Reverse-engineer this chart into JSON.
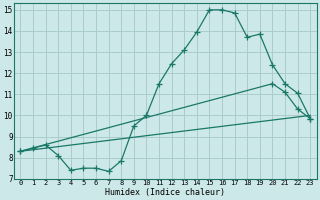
{
  "background_color": "#cce8e8",
  "grid_color": "#aacccc",
  "line_color": "#1a7868",
  "xlim": [
    -0.5,
    23.5
  ],
  "ylim": [
    7,
    15.3
  ],
  "xlabel": "Humidex (Indice chaleur)",
  "xticks": [
    0,
    1,
    2,
    3,
    4,
    5,
    6,
    7,
    8,
    9,
    10,
    11,
    12,
    13,
    14,
    15,
    16,
    17,
    18,
    19,
    20,
    21,
    22,
    23
  ],
  "yticks": [
    7,
    8,
    9,
    10,
    11,
    12,
    13,
    14,
    15
  ],
  "line1_x": [
    0,
    1,
    2,
    3,
    4,
    5,
    6,
    7,
    8,
    9,
    10,
    11,
    12,
    13,
    14,
    15,
    16,
    17,
    18,
    19,
    20,
    21,
    22,
    23
  ],
  "line1_y": [
    8.3,
    8.45,
    8.6,
    8.1,
    7.4,
    7.5,
    7.5,
    7.35,
    7.85,
    9.5,
    10.0,
    11.5,
    12.45,
    13.1,
    13.95,
    15.0,
    15.0,
    14.85,
    13.7,
    13.85,
    12.4,
    11.5,
    11.05,
    9.85
  ],
  "line2_x": [
    0,
    23
  ],
  "line2_y": [
    8.3,
    10.0
  ],
  "line3_x": [
    0,
    20,
    21,
    22,
    23
  ],
  "line3_y": [
    8.3,
    11.5,
    11.1,
    10.3,
    9.85
  ]
}
